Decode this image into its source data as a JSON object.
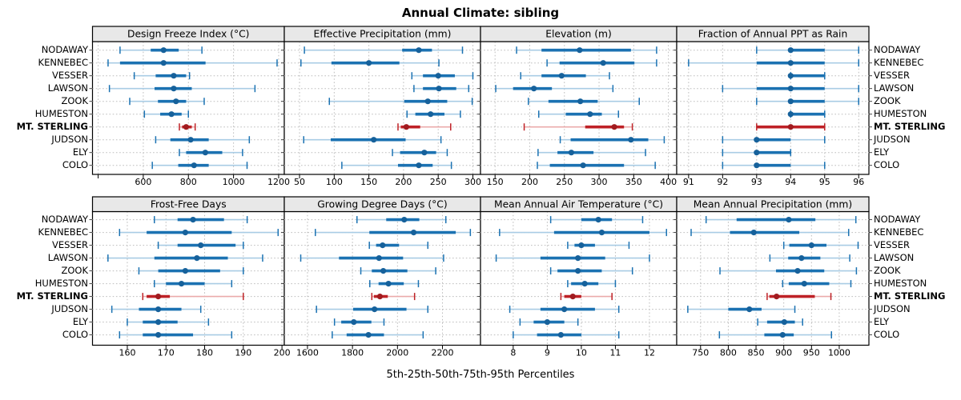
{
  "figure": {
    "title": "Annual Climate: sibling",
    "caption": "5th-25th-50th-75th-95th Percentiles"
  },
  "chart_data": {
    "type": "dotplot-trellis",
    "title": "Annual Climate: sibling",
    "caption": "5th-25th-50th-75th-95th Percentiles",
    "percentiles": [
      5,
      25,
      50,
      75,
      95
    ],
    "grid": {
      "rows": 2,
      "cols": 4,
      "gridlines": "dotted",
      "strip_headers": true,
      "labels_both_sides": true
    },
    "categories": [
      "NODAWAY",
      "KENNEBEC",
      "VESSER",
      "LAWSON",
      "ZOOK",
      "HUMESTON",
      "MT. STERLING",
      "JUDSON",
      "ELY",
      "COLO"
    ],
    "highlight_category": "MT. STERLING",
    "colors": {
      "series_blue": "#1B72B2",
      "series_blue_light": "#A9CCE5",
      "series_blue_dot": "#16619B",
      "highlight_red": "#BE2126",
      "highlight_red_light": "#EBABAB",
      "highlight_red_dot": "#A11B1F",
      "strip_bg": "#E8E8E8",
      "panel_border": "#000000",
      "grid_line": "#BDBDBD"
    },
    "panels": [
      {
        "title": "Design Freeze Index (°C)",
        "xlim": [
          375,
          1225
        ],
        "ticks": [
          400,
          600,
          800,
          1000,
          1200
        ],
        "tick_labels": [
          "",
          "600",
          "800",
          "1000",
          "1200"
        ],
        "values": [
          [
            497,
            633,
            690,
            757,
            860
          ],
          [
            444,
            497,
            690,
            876,
            1193
          ],
          [
            560,
            655,
            735,
            790,
            805
          ],
          [
            450,
            650,
            735,
            815,
            1095
          ],
          [
            540,
            665,
            745,
            790,
            870
          ],
          [
            605,
            675,
            725,
            770,
            800
          ],
          [
            760,
            772,
            790,
            815,
            830
          ],
          [
            655,
            720,
            810,
            890,
            1070
          ],
          [
            760,
            790,
            875,
            950,
            1040
          ],
          [
            640,
            755,
            825,
            890,
            1060
          ]
        ]
      },
      {
        "title": "Effective Precipitation (mm)",
        "xlim": [
          28,
          311
        ],
        "ticks": [
          50,
          100,
          150,
          200,
          250,
          300
        ],
        "tick_labels": [
          "50",
          "100",
          "150",
          "200",
          "250",
          "300"
        ],
        "values": [
          [
            57,
            198,
            222,
            241,
            285
          ],
          [
            52,
            96,
            150,
            194,
            251
          ],
          [
            212,
            228,
            250,
            274,
            300
          ],
          [
            215,
            228,
            251,
            276,
            294
          ],
          [
            93,
            201,
            235,
            263,
            299
          ],
          [
            205,
            217,
            239,
            259,
            282
          ],
          [
            192,
            196,
            204,
            224,
            268
          ],
          [
            56,
            95,
            157,
            203,
            254
          ],
          [
            184,
            195,
            230,
            247,
            263
          ],
          [
            111,
            192,
            222,
            242,
            269
          ]
        ]
      },
      {
        "title": "Elevation (m)",
        "xlim": [
          129,
          412
        ],
        "ticks": [
          150,
          200,
          250,
          300,
          350,
          400
        ],
        "tick_labels": [
          "150",
          "200",
          "250",
          "300",
          "350",
          "400"
        ],
        "values": [
          [
            181,
            217,
            272,
            346,
            383
          ],
          [
            225,
            243,
            306,
            351,
            383
          ],
          [
            187,
            217,
            246,
            281,
            315
          ],
          [
            151,
            176,
            206,
            232,
            320
          ],
          [
            198,
            227,
            273,
            298,
            358
          ],
          [
            213,
            252,
            287,
            304,
            328
          ],
          [
            192,
            280,
            322,
            336,
            348
          ],
          [
            244,
            259,
            346,
            371,
            394
          ],
          [
            212,
            240,
            260,
            292,
            367
          ],
          [
            211,
            229,
            277,
            336,
            381
          ]
        ]
      },
      {
        "title": "Fraction of Annual PPT as Rain",
        "xlim": [
          90.65,
          96.3
        ],
        "ticks": [
          91,
          92,
          93,
          94,
          95,
          96
        ],
        "tick_labels": [
          "91",
          "92",
          "93",
          "94",
          "95",
          "96"
        ],
        "values": [
          [
            93,
            94,
            94,
            95,
            96
          ],
          [
            91,
            93,
            94,
            95,
            96
          ],
          [
            94,
            94,
            94,
            95,
            95
          ],
          [
            92,
            93,
            94,
            95,
            96
          ],
          [
            93,
            94,
            94,
            95,
            96
          ],
          [
            94,
            94,
            94,
            95,
            95
          ],
          [
            93,
            93,
            94,
            95,
            95
          ],
          [
            92,
            93,
            93,
            94,
            95
          ],
          [
            92,
            93,
            93,
            94,
            94
          ],
          [
            92,
            93,
            93,
            94,
            95
          ]
        ]
      },
      {
        "title": "Frost-Free Days",
        "xlim": [
          151,
          200.6
        ],
        "ticks": [
          160,
          170,
          180,
          190,
          200
        ],
        "tick_labels": [
          "160",
          "170",
          "180",
          "190",
          "200"
        ],
        "values": [
          [
            167,
            173,
            177,
            185,
            191
          ],
          [
            158,
            165,
            175,
            187,
            199
          ],
          [
            168,
            173,
            179,
            188,
            190
          ],
          [
            155,
            167,
            178,
            186,
            195
          ],
          [
            163,
            168,
            175,
            184,
            190
          ],
          [
            167,
            170,
            174,
            180,
            187
          ],
          [
            164,
            165,
            168,
            171,
            190
          ],
          [
            156,
            163,
            168,
            174,
            179
          ],
          [
            160,
            164,
            168,
            173,
            181
          ],
          [
            158,
            164,
            168,
            177,
            187
          ]
        ]
      },
      {
        "title": "Growing Degree Days (°C)",
        "xlim": [
          1497,
          2369
        ],
        "ticks": [
          1600,
          1800,
          2000,
          2200
        ],
        "tick_labels": [
          "1600",
          "1800",
          "2000",
          "2200"
        ],
        "values": [
          [
            1820,
            1950,
            2030,
            2097,
            2215
          ],
          [
            1635,
            1875,
            2072,
            2259,
            2324
          ],
          [
            1875,
            1905,
            1934,
            2007,
            2135
          ],
          [
            1570,
            1740,
            1918,
            2025,
            2205
          ],
          [
            1837,
            1886,
            1937,
            2044,
            2170
          ],
          [
            1877,
            1916,
            1960,
            2028,
            2093
          ],
          [
            1886,
            1895,
            1922,
            1957,
            2076
          ],
          [
            1640,
            1803,
            1898,
            2040,
            2135
          ],
          [
            1720,
            1750,
            1806,
            1884,
            1940
          ],
          [
            1710,
            1774,
            1871,
            1940,
            2114
          ]
        ]
      },
      {
        "title": "Mean Annual Air Temperature (°C)",
        "xlim": [
          7.04,
          12.8
        ],
        "ticks": [
          8,
          9,
          10,
          11,
          12
        ],
        "tick_labels": [
          "8",
          "9",
          "10",
          "11",
          "12"
        ],
        "values": [
          [
            9.1,
            10.0,
            10.5,
            10.9,
            11.8
          ],
          [
            7.6,
            9.2,
            10.6,
            12.0,
            12.5
          ],
          [
            9.6,
            9.8,
            10.0,
            10.4,
            11.4
          ],
          [
            7.5,
            8.8,
            9.9,
            10.7,
            12.0
          ],
          [
            9.1,
            9.3,
            9.9,
            10.6,
            11.5
          ],
          [
            9.6,
            9.7,
            10.1,
            10.5,
            11.0
          ],
          [
            9.4,
            9.5,
            9.75,
            10.0,
            10.9
          ],
          [
            7.9,
            8.8,
            9.5,
            10.4,
            11.1
          ],
          [
            8.2,
            8.6,
            9.0,
            9.5,
            9.9
          ],
          [
            8.0,
            8.7,
            9.4,
            10.0,
            11.1
          ]
        ]
      },
      {
        "title": "Mean Annual Precipitation (mm)",
        "xlim": [
          707,
          1053.5
        ],
        "ticks": [
          750,
          800,
          850,
          900,
          950,
          1000
        ],
        "tick_labels": [
          "750",
          "800",
          "850",
          "900",
          "950",
          "1000"
        ],
        "values": [
          [
            760,
            815,
            909,
            957,
            1030
          ],
          [
            733,
            803,
            846,
            928,
            1017
          ],
          [
            900,
            910,
            950,
            977,
            1034
          ],
          [
            875,
            908,
            932,
            966,
            1019
          ],
          [
            785,
            886,
            925,
            973,
            1031
          ],
          [
            898,
            909,
            937,
            982,
            1021
          ],
          [
            870,
            874,
            887,
            956,
            985
          ],
          [
            727,
            800,
            838,
            860,
            920
          ],
          [
            853,
            870,
            901,
            920,
            934
          ],
          [
            784,
            865,
            898,
            918,
            986
          ]
        ]
      }
    ]
  }
}
